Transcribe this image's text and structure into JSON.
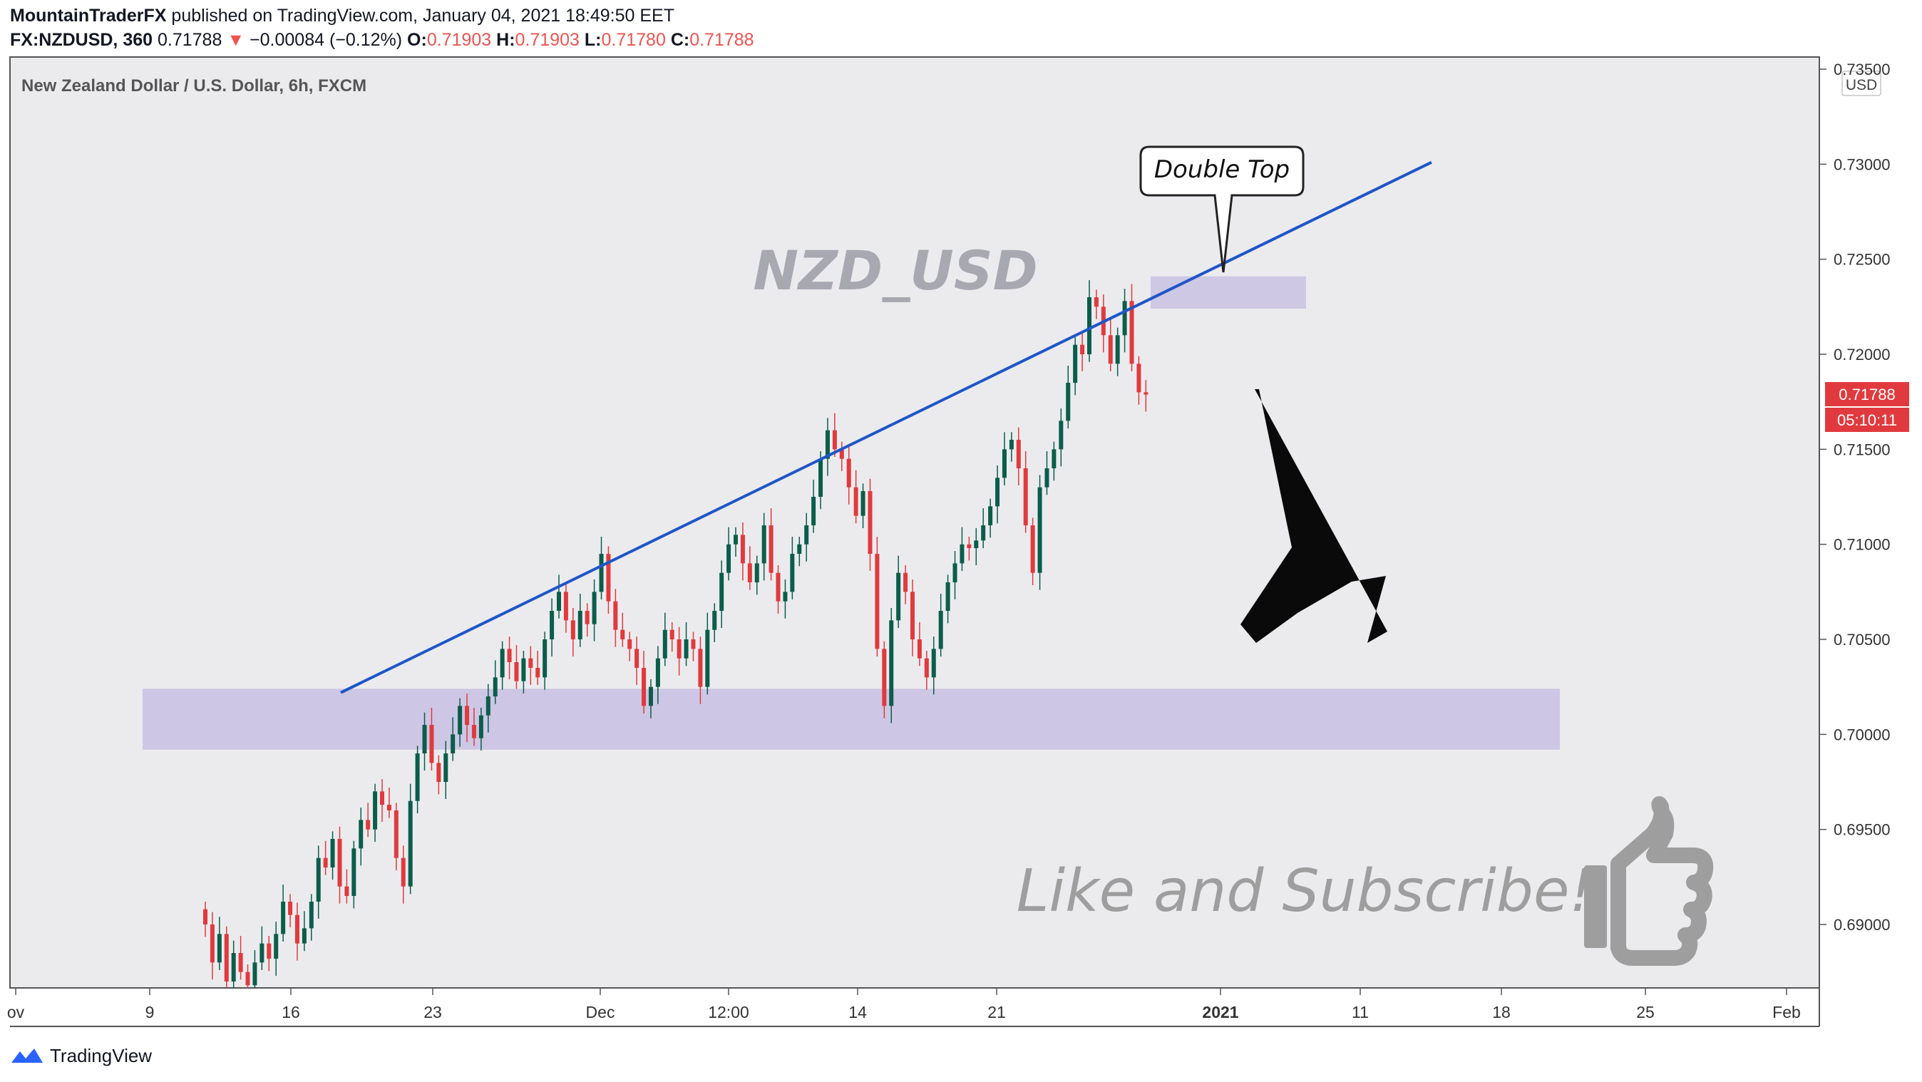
{
  "header": {
    "author": "MountainTraderFX",
    "published": "published on TradingView.com, January 04, 2021 18:49:50 EET",
    "symbol": "FX:NZDUSD, 360",
    "last": "0.71788",
    "change": "−0.00084 (−0.12%)",
    "o_label": "O:",
    "o_value": "0.71903",
    "h_label": "H:",
    "h_value": "0.71903",
    "l_label": "L:",
    "l_value": "0.71780",
    "c_label": "C:",
    "c_value": "0.71788"
  },
  "chart_title": "New Zealand Dollar / U.S. Dollar, 6h, FXCM",
  "currency": "USD",
  "price_tag": "0.71788",
  "countdown_tag": "05:10:11",
  "watermark": "NZD_USD",
  "callout": "Double Top",
  "promo": "Like and Subscribe!",
  "footer_brand": "TradingView",
  "colors": {
    "up": "#0b5d4b",
    "down": "#e03a3e",
    "trendline": "#1e56c8",
    "zone": "#cdc6e4",
    "bg": "#ebebee"
  },
  "chart_data": {
    "type": "candlestick",
    "title": "New Zealand Dollar / U.S. Dollar, 6h, FXCM",
    "ylim": [
      0.6865,
      0.7353
    ],
    "y_ticks": [
      "0.73500",
      "0.73000",
      "0.72500",
      "0.72000",
      "0.71500",
      "0.71000",
      "0.70500",
      "0.70000",
      "0.69500",
      "0.69000"
    ],
    "x_ticks": [
      "ov",
      "9",
      "16",
      "23",
      "Dec",
      "12:00",
      "14",
      "21",
      "2021",
      "11",
      "18",
      "25",
      "Feb"
    ],
    "support_zone": [
      0.6992,
      0.7024
    ],
    "resistance_zone": [
      0.7224,
      0.7241
    ],
    "trendline": {
      "start": 0.7022,
      "end": 0.7301
    },
    "close_price": 0.71788,
    "closes": [
      0.69,
      0.688,
      0.6895,
      0.687,
      0.6885,
      0.6875,
      0.6868,
      0.688,
      0.689,
      0.6882,
      0.6895,
      0.6912,
      0.6905,
      0.689,
      0.6898,
      0.6912,
      0.6935,
      0.693,
      0.6945,
      0.692,
      0.6915,
      0.694,
      0.6955,
      0.695,
      0.697,
      0.6963,
      0.696,
      0.6935,
      0.692,
      0.6965,
      0.699,
      0.7005,
      0.6985,
      0.6975,
      0.699,
      0.7,
      0.7015,
      0.7005,
      0.6998,
      0.701,
      0.702,
      0.703,
      0.7045,
      0.7038,
      0.7028,
      0.704,
      0.7035,
      0.703,
      0.705,
      0.7065,
      0.7075,
      0.706,
      0.705,
      0.7065,
      0.7058,
      0.7075,
      0.7095,
      0.707,
      0.7055,
      0.705,
      0.7045,
      0.7035,
      0.7015,
      0.7025,
      0.704,
      0.7055,
      0.705,
      0.704,
      0.705,
      0.7045,
      0.7025,
      0.7055,
      0.7065,
      0.7085,
      0.71,
      0.7105,
      0.709,
      0.708,
      0.709,
      0.711,
      0.7085,
      0.707,
      0.7075,
      0.7095,
      0.71,
      0.711,
      0.7125,
      0.7145,
      0.716,
      0.715,
      0.7145,
      0.713,
      0.7115,
      0.7128,
      0.7095,
      0.7045,
      0.7015,
      0.706,
      0.7085,
      0.7075,
      0.705,
      0.704,
      0.703,
      0.7045,
      0.7065,
      0.708,
      0.709,
      0.71,
      0.7098,
      0.7102,
      0.711,
      0.712,
      0.7135,
      0.715,
      0.7155,
      0.714,
      0.711,
      0.7085,
      0.713,
      0.714,
      0.715,
      0.7165,
      0.7185,
      0.7205,
      0.72,
      0.723,
      0.7225,
      0.721,
      0.7195,
      0.721,
      0.7228,
      0.7195,
      0.718,
      0.71788
    ]
  }
}
